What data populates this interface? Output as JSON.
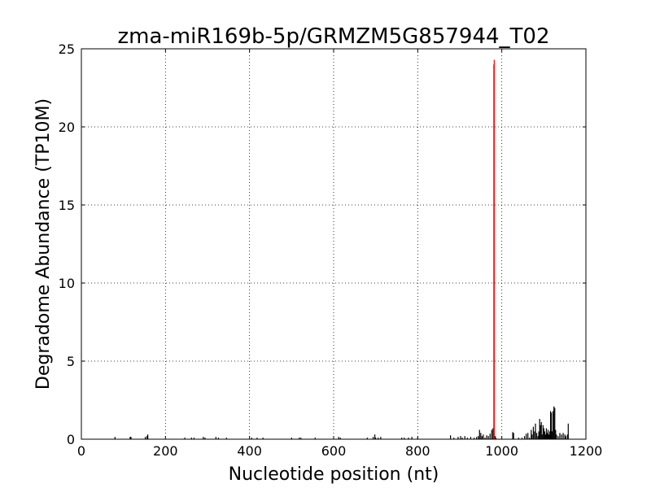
{
  "chart_data": {
    "type": "bar",
    "title": "zma-miR169b-5p/GRMZM5G857944_T02",
    "xlabel": "Nucleotide position (nt)",
    "ylabel": "Degradome Abundance (TP10M)",
    "xlim": [
      0,
      1200
    ],
    "ylim": [
      0,
      25
    ],
    "xticks": [
      0,
      200,
      400,
      600,
      800,
      1000,
      1200
    ],
    "yticks": [
      0,
      5,
      10,
      15,
      20,
      25
    ],
    "grid": true,
    "colors": {
      "background": "#ffffff",
      "axis": "#000000",
      "grid": "#000000",
      "bars": "#000000",
      "highlight": "#ff0000"
    },
    "series": [
      {
        "values": [
          [
            80,
            0.15
          ],
          [
            116,
            0.15
          ],
          [
            118,
            0.15
          ],
          [
            152,
            0.15
          ],
          [
            156,
            0.2
          ],
          [
            158,
            0.3
          ],
          [
            246,
            0.1
          ],
          [
            262,
            0.1
          ],
          [
            268,
            0.1
          ],
          [
            290,
            0.15
          ],
          [
            294,
            0.1
          ],
          [
            320,
            0.15
          ],
          [
            326,
            0.1
          ],
          [
            345,
            0.1
          ],
          [
            405,
            0.1
          ],
          [
            418,
            0.1
          ],
          [
            432,
            0.1
          ],
          [
            500,
            0.1
          ],
          [
            518,
            0.1
          ],
          [
            522,
            0.1
          ],
          [
            556,
            0.1
          ],
          [
            612,
            0.15
          ],
          [
            616,
            0.1
          ],
          [
            680,
            0.1
          ],
          [
            694,
            0.15
          ],
          [
            698,
            0.3
          ],
          [
            700,
            0.1
          ],
          [
            706,
            0.1
          ],
          [
            712,
            0.15
          ],
          [
            762,
            0.1
          ],
          [
            768,
            0.1
          ],
          [
            778,
            0.1
          ],
          [
            786,
            0.15
          ],
          [
            800,
            0.1
          ],
          [
            878,
            0.25
          ],
          [
            886,
            0.1
          ],
          [
            896,
            0.15
          ],
          [
            902,
            0.2
          ],
          [
            906,
            0.1
          ],
          [
            912,
            0.2
          ],
          [
            918,
            0.1
          ],
          [
            926,
            0.15
          ],
          [
            934,
            0.1
          ],
          [
            940,
            0.15
          ],
          [
            944,
            0.2
          ],
          [
            947,
            0.6
          ],
          [
            950,
            0.4
          ],
          [
            953,
            0.2
          ],
          [
            956,
            0.3
          ],
          [
            960,
            0.1
          ],
          [
            964,
            0.25
          ],
          [
            968,
            0.2
          ],
          [
            972,
            0.35
          ],
          [
            976,
            0.6
          ],
          [
            979,
            0.7
          ],
          [
            984,
            0.2
          ],
          [
            986,
            0.1
          ],
          [
            1026,
            0.45
          ],
          [
            1028,
            0.4
          ],
          [
            1040,
            0.1
          ],
          [
            1048,
            0.1
          ],
          [
            1054,
            0.2
          ],
          [
            1058,
            0.35
          ],
          [
            1062,
            0.4
          ],
          [
            1066,
            0.1
          ],
          [
            1070,
            0.6
          ],
          [
            1072,
            0.3
          ],
          [
            1075,
            0.8
          ],
          [
            1078,
            0.5
          ],
          [
            1080,
            1.0
          ],
          [
            1083,
            0.4
          ],
          [
            1086,
            0.2
          ],
          [
            1088,
            0.5
          ],
          [
            1090,
            1.3
          ],
          [
            1092,
            0.9
          ],
          [
            1094,
            1.1
          ],
          [
            1096,
            0.3
          ],
          [
            1098,
            0.9
          ],
          [
            1100,
            0.7
          ],
          [
            1102,
            0.5
          ],
          [
            1104,
            0.3
          ],
          [
            1106,
            0.7
          ],
          [
            1108,
            0.4
          ],
          [
            1110,
            0.6
          ],
          [
            1112,
            0.3
          ],
          [
            1114,
            0.5
          ],
          [
            1116,
            1.8
          ],
          [
            1118,
            1.7
          ],
          [
            1120,
            0.5
          ],
          [
            1122,
            1.8
          ],
          [
            1124,
            2.1
          ],
          [
            1126,
            2.0
          ],
          [
            1128,
            0.6
          ],
          [
            1130,
            0.3
          ],
          [
            1134,
            0.2
          ],
          [
            1138,
            0.4
          ],
          [
            1142,
            0.3
          ],
          [
            1146,
            0.4
          ],
          [
            1150,
            0.3
          ],
          [
            1152,
            0.2
          ],
          [
            1156,
            0.3
          ],
          [
            1158,
            1.0
          ]
        ]
      },
      {
        "values": [
          [
            981,
            24.0
          ],
          [
            982,
            24.3
          ]
        ]
      }
    ]
  }
}
